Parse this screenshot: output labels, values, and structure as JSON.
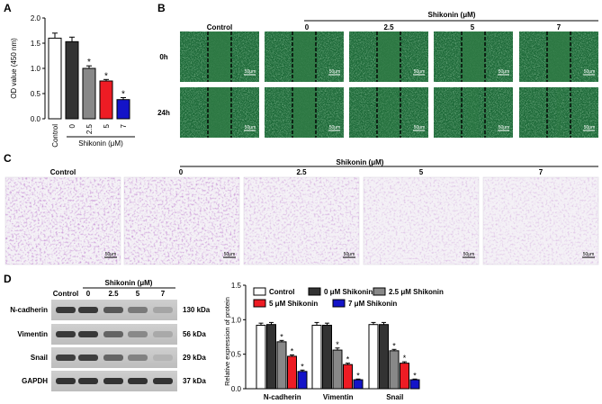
{
  "panels": {
    "A": {
      "letter": "A",
      "chart_data": {
        "type": "bar",
        "categories": [
          "Control",
          "0",
          "2.5",
          "5",
          "7"
        ],
        "values": [
          1.6,
          1.53,
          1.0,
          0.75,
          0.38
        ],
        "errors": [
          0.1,
          0.09,
          0.05,
          0.03,
          0.04
        ],
        "significance": [
          "",
          "",
          "*",
          "*",
          "*"
        ],
        "colors": [
          "#ffffff",
          "#333333",
          "#888888",
          "#ee1c24",
          "#1414c8"
        ],
        "ylabel": "OD value (450 nm)",
        "xgroup_label": "Shikonin (μM)",
        "yticks": [
          "0.0",
          "0.5",
          "1.0",
          "1.5",
          "2.0"
        ],
        "ylim": [
          0,
          2.0
        ]
      }
    },
    "B": {
      "letter": "B",
      "column_labels": [
        "Control",
        "0",
        "2.5",
        "5",
        "7"
      ],
      "group_label": "Shikonin (μM)",
      "row_labels": [
        "0h",
        "24h"
      ],
      "scale_bar": "50μm"
    },
    "C": {
      "letter": "C",
      "column_labels": [
        "Control",
        "0",
        "2.5",
        "5",
        "7"
      ],
      "group_label": "Shikonin (μM)",
      "scale_bar": "50μm"
    },
    "D": {
      "letter": "D",
      "blot": {
        "group_label": "Shikonin (μM)",
        "lane_labels": [
          "Control",
          "0",
          "2.5",
          "5",
          "7"
        ],
        "bands": [
          {
            "name": "N-cadherin",
            "size": "130 kDa",
            "intensity": [
              0.92,
              0.92,
              0.78,
              0.62,
              0.42
            ]
          },
          {
            "name": "Vimentin",
            "size": "56 kDa",
            "intensity": [
              0.92,
              0.92,
              0.72,
              0.55,
              0.4
            ]
          },
          {
            "name": "Snail",
            "size": "29 kDa",
            "intensity": [
              0.9,
              0.9,
              0.72,
              0.58,
              0.35
            ]
          },
          {
            "name": "GAPDH",
            "size": "37 kDa",
            "intensity": [
              0.95,
              0.95,
              0.95,
              0.95,
              0.95
            ]
          }
        ]
      },
      "chart_data": {
        "type": "bar",
        "categories": [
          "N-cadherin",
          "Vimentin",
          "Snail"
        ],
        "series": [
          {
            "name": "Control",
            "color": "#ffffff",
            "values": [
              0.92,
              0.92,
              0.93
            ],
            "errors": [
              0.03,
              0.04,
              0.03
            ],
            "significance": [
              "",
              "",
              ""
            ]
          },
          {
            "name": "0 μM Shikonin",
            "color": "#333333",
            "values": [
              0.93,
              0.92,
              0.93
            ],
            "errors": [
              0.03,
              0.03,
              0.03
            ],
            "significance": [
              "",
              "",
              ""
            ]
          },
          {
            "name": "2.5 μM Shikonin",
            "color": "#888888",
            "values": [
              0.68,
              0.56,
              0.55
            ],
            "errors": [
              0.02,
              0.03,
              0.02
            ],
            "significance": [
              "*",
              "*",
              "*"
            ]
          },
          {
            "name": "5 μM Shikonin",
            "color": "#ee1c24",
            "values": [
              0.47,
              0.35,
              0.37
            ],
            "errors": [
              0.02,
              0.02,
              0.02
            ],
            "significance": [
              "*",
              "*",
              "*"
            ]
          },
          {
            "name": "7 μM Shikonin",
            "color": "#1414c8",
            "values": [
              0.25,
              0.13,
              0.13
            ],
            "errors": [
              0.02,
              0.01,
              0.01
            ],
            "significance": [
              "*",
              "*",
              "*"
            ]
          }
        ],
        "ylabel": "Relative expression of protein",
        "yticks": [
          "0.0",
          "0.5",
          "1.0",
          "1.5"
        ],
        "ylim": [
          0,
          1.5
        ]
      }
    }
  }
}
